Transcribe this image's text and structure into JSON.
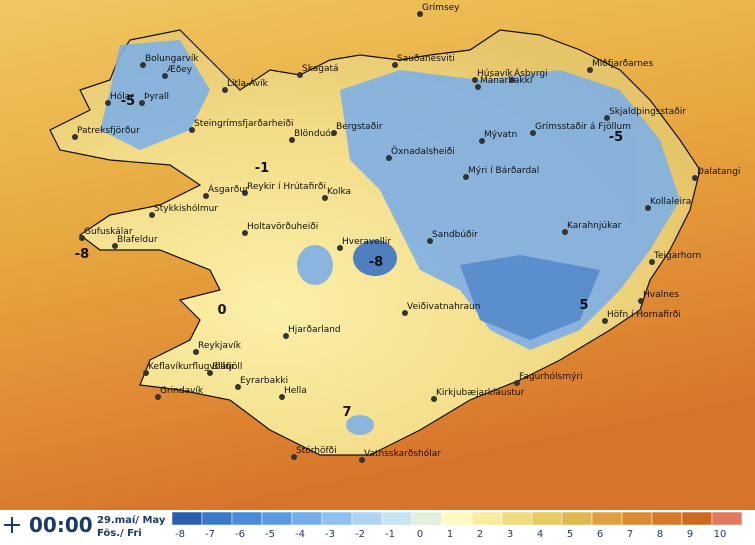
{
  "time": "00:00",
  "date": "29.maí/ May",
  "weekday": "Fös./ Fri",
  "places": [
    "Grímsey",
    "Mánarbakki",
    "Húsavík",
    "Ásbyrgi",
    "Miðfjarðarnes",
    "Sauðanesviti",
    "Skagatá",
    "Litla-Ávík",
    "Bolungarvík",
    "Æðey",
    "Hólar",
    "Þyrall",
    "Patreksfjörður",
    "Steingrímsfjarðarheiði",
    "Blönduós",
    "Bergstaðir",
    "Öxnadalsheiði",
    "Mývatn",
    "Grímsstaðir á Fjöllum",
    "Skjaldþingsstaðir",
    "Dalatangi",
    "Kollaleira",
    "Mýri í Bárðardal",
    "Reykir í Hrútafirði",
    "Kolka",
    "Ásgarður",
    "Stykkishólmur",
    "Gufuskálar",
    "Blafeldur",
    "Holtavörðuheiði",
    "Sandbúðir",
    "Karahnjúkar",
    "Teigarhorn",
    "Hveravellir",
    "Hvalnes",
    "Höfn í Hornafirði",
    "Veiðivatnahraun",
    "Hjarðarland",
    "Reykjavík",
    "Keflavíkurflugvöllur",
    "Bláfjöll",
    "Grindavík",
    "Eyrarbakki",
    "Fagurhólsmýri",
    "Hella",
    "Kirkjubæjarklaustur",
    "Stórhöfði",
    "Vatnsskarðshólar"
  ],
  "map_labels": [
    -5,
    -1,
    -8,
    -8,
    0,
    -5,
    5,
    7
  ],
  "colorbar": {
    "ticks": [
      -8,
      -7,
      -6,
      -5,
      -4,
      -3,
      -2,
      -1,
      0,
      1,
      2,
      3,
      4,
      5,
      6,
      7,
      8,
      9,
      10
    ],
    "colors": [
      "#2b5fae",
      "#3a78c8",
      "#4a8ad6",
      "#5c9ae0",
      "#74ade8",
      "#8fc0ef",
      "#aed3f5",
      "#c8e4f0",
      "#e2f0dc",
      "#fffbc0",
      "#f7eca0",
      "#eedc80",
      "#e6cc60",
      "#e0b850",
      "#e0a040",
      "#dc8c30",
      "#d67a28",
      "#cc6a20",
      "#e07a60"
    ]
  }
}
